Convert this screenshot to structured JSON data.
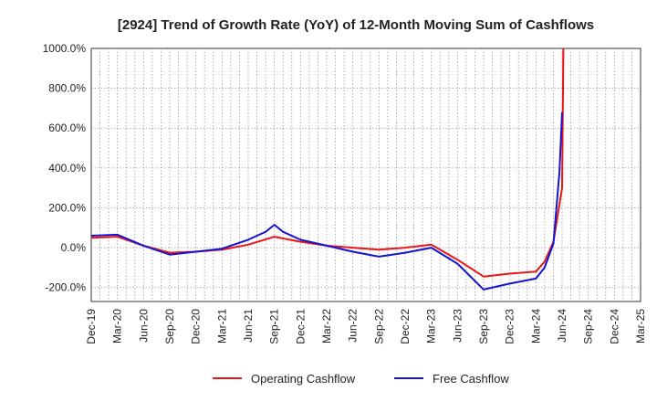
{
  "chart_data": {
    "type": "line",
    "title": "[2924]  Trend of Growth Rate (YoY) of 12-Month Moving Sum of Cashflows",
    "xlabel": "",
    "ylabel": "",
    "ylim": [
      -270,
      1000
    ],
    "yticks": [
      -200,
      0,
      200,
      400,
      600,
      800,
      1000
    ],
    "ytick_labels": [
      "-200.0%",
      "0.0%",
      "200.0%",
      "400.0%",
      "600.0%",
      "800.0%",
      "1000.0%"
    ],
    "x_categories": [
      "Dec-19",
      "Mar-20",
      "Jun-20",
      "Sep-20",
      "Dec-20",
      "Mar-21",
      "Jun-21",
      "Sep-21",
      "Dec-21",
      "Mar-22",
      "Jun-22",
      "Sep-22",
      "Dec-22",
      "Mar-23",
      "Jun-23",
      "Sep-23",
      "Dec-23",
      "Mar-24",
      "Jun-24",
      "Sep-24",
      "Dec-24",
      "Mar-25"
    ],
    "grid": true,
    "legend_position": "bottom",
    "series": [
      {
        "name": "Operating Cashflow",
        "color": "#e8161a",
        "points": [
          [
            0,
            50
          ],
          [
            1,
            55
          ],
          [
            2,
            10
          ],
          [
            3,
            -25
          ],
          [
            4,
            -20
          ],
          [
            5,
            -10
          ],
          [
            6,
            15
          ],
          [
            7,
            55
          ],
          [
            8,
            30
          ],
          [
            9,
            10
          ],
          [
            10,
            0
          ],
          [
            11,
            -10
          ],
          [
            12,
            0
          ],
          [
            13,
            15
          ],
          [
            14,
            -60
          ],
          [
            15,
            -145
          ],
          [
            16,
            -130
          ],
          [
            17,
            -120
          ],
          [
            17.33,
            -70
          ],
          [
            17.67,
            30
          ],
          [
            18,
            300
          ],
          [
            18.05,
            1000
          ]
        ]
      },
      {
        "name": "Free Cashflow",
        "color": "#1515d0",
        "points": [
          [
            0,
            60
          ],
          [
            1,
            65
          ],
          [
            2,
            10
          ],
          [
            3,
            -35
          ],
          [
            4,
            -20
          ],
          [
            5,
            -5
          ],
          [
            6,
            40
          ],
          [
            6.67,
            80
          ],
          [
            7,
            115
          ],
          [
            7.33,
            80
          ],
          [
            8,
            40
          ],
          [
            9,
            10
          ],
          [
            10,
            -20
          ],
          [
            11,
            -45
          ],
          [
            12,
            -25
          ],
          [
            13,
            0
          ],
          [
            14,
            -80
          ],
          [
            15,
            -210
          ],
          [
            16,
            -180
          ],
          [
            17,
            -155
          ],
          [
            17.33,
            -100
          ],
          [
            17.67,
            20
          ],
          [
            17.9,
            380
          ],
          [
            18,
            680
          ]
        ]
      }
    ]
  }
}
